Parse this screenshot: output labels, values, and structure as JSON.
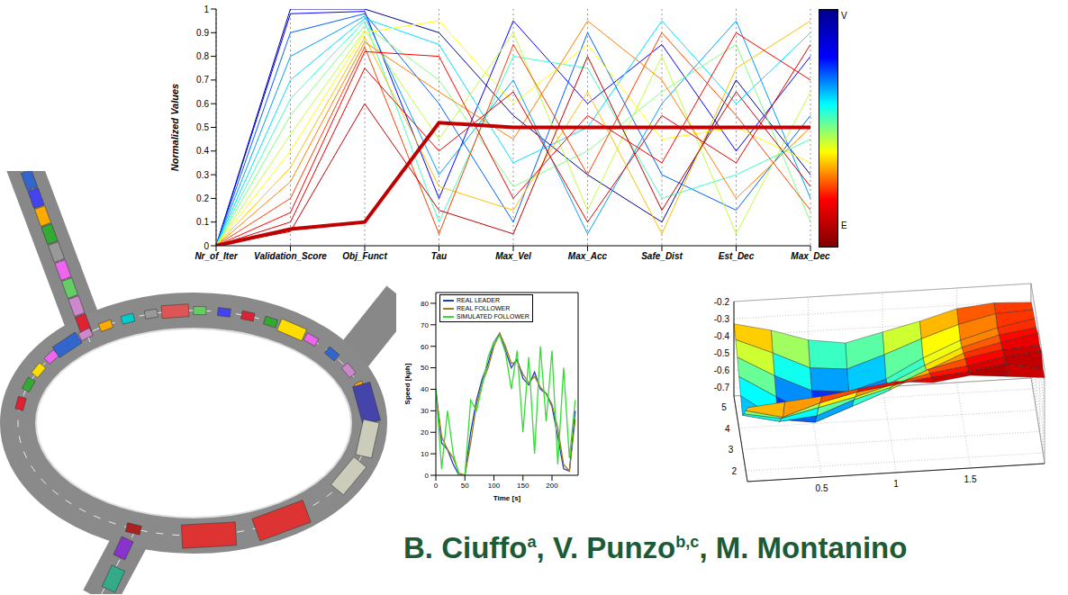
{
  "chart_data": [
    {
      "type": "parallel",
      "categories": [
        "Nr_of_Iter",
        "Validation_Score",
        "Obj_Funct",
        "Tau",
        "Max_Vel",
        "Max_Acc",
        "Safe_Dist",
        "Est_Dec",
        "Max_Dec"
      ],
      "ylabel": "Normalized Values",
      "ylim": [
        0,
        1
      ],
      "yticks": [
        0,
        0.1,
        0.2,
        0.3,
        0.4,
        0.5,
        0.6,
        0.7,
        0.8,
        0.9,
        1
      ],
      "grid": "x",
      "colorbar": {
        "labels": [
          "V",
          "E"
        ]
      },
      "series": [
        {
          "color": "#00008f",
          "values": [
            0,
            1,
            1,
            0.9,
            0.55,
            0.3,
            0.1,
            0.7,
            0.3
          ]
        },
        {
          "color": "#0000ff",
          "values": [
            0,
            0.98,
            0.99,
            0.2,
            0.95,
            0.6,
            0.85,
            0.4,
            0.8
          ]
        },
        {
          "color": "#0060ff",
          "values": [
            0,
            0.9,
            0.98,
            0.6,
            0.1,
            0.9,
            0.3,
            0.15,
            0.55
          ]
        },
        {
          "color": "#00a0ff",
          "values": [
            0,
            0.8,
            0.97,
            0.3,
            0.7,
            0.05,
            0.6,
            0.95,
            0.2
          ]
        },
        {
          "color": "#00e0ff",
          "values": [
            0,
            0.7,
            0.96,
            0.85,
            0.35,
            0.5,
            0.95,
            0.6,
            0.9
          ]
        },
        {
          "color": "#40ffc0",
          "values": [
            0,
            0.62,
            0.95,
            0.1,
            0.8,
            0.75,
            0.2,
            0.3,
            0.45
          ]
        },
        {
          "color": "#80ff80",
          "values": [
            0,
            0.55,
            0.93,
            0.7,
            0.25,
            0.4,
            0.65,
            0.85,
            0.1
          ]
        },
        {
          "color": "#c0ff40",
          "values": [
            0,
            0.47,
            0.91,
            0.45,
            0.9,
            0.15,
            0.8,
            0.05,
            0.65
          ]
        },
        {
          "color": "#ffff00",
          "values": [
            0,
            0.4,
            0.9,
            0.95,
            0.6,
            0.85,
            0.45,
            0.5,
            0.35
          ]
        },
        {
          "color": "#ffc000",
          "values": [
            0,
            0.33,
            0.88,
            0.25,
            0.15,
            0.65,
            0.05,
            0.75,
            0.95
          ]
        },
        {
          "color": "#ff8000",
          "values": [
            0,
            0.27,
            0.86,
            0.65,
            0.45,
            0.95,
            0.7,
            0.2,
            0.5
          ]
        },
        {
          "color": "#ff4000",
          "values": [
            0,
            0.2,
            0.84,
            0.05,
            0.85,
            0.3,
            0.9,
            0.55,
            0.15
          ]
        },
        {
          "color": "#ff0000",
          "values": [
            0,
            0.14,
            0.82,
            0.8,
            0.2,
            0.55,
            0.35,
            0.9,
            0.7
          ]
        },
        {
          "color": "#e00000",
          "values": [
            0,
            0.1,
            0.75,
            0.4,
            0.65,
            0.1,
            0.55,
            0.35,
            0.85
          ]
        },
        {
          "color": "#c00000",
          "values": [
            0,
            0.06,
            0.6,
            0.15,
            0.05,
            0.8,
            0.15,
            0.65,
            0.25
          ]
        },
        {
          "color": "#c00000",
          "line_style": "thick",
          "values": [
            0,
            0.07,
            0.1,
            0.52,
            0.5,
            0.5,
            0.5,
            0.5,
            0.5
          ]
        }
      ]
    },
    {
      "type": "line",
      "xlabel": "Time [s]",
      "ylabel": "Speed [kph]",
      "x": [
        0,
        10,
        20,
        30,
        40,
        50,
        60,
        70,
        80,
        90,
        100,
        110,
        120,
        130,
        140,
        150,
        160,
        170,
        180,
        190,
        200,
        210,
        220,
        230,
        240
      ],
      "xlim": [
        0,
        245
      ],
      "xticks": [
        0,
        50,
        100,
        150,
        200
      ],
      "ylim": [
        0,
        85
      ],
      "yticks": [
        0,
        10,
        20,
        30,
        40,
        50,
        60,
        70,
        80
      ],
      "grid": false,
      "legend": "upper left",
      "series": [
        {
          "name": "REAL LEADER",
          "color": "#1f3fbf",
          "values": [
            40,
            15,
            12,
            5,
            0,
            0,
            20,
            35,
            45,
            52,
            62,
            66,
            58,
            50,
            54,
            45,
            42,
            48,
            40,
            38,
            32,
            18,
            3,
            2,
            30
          ]
        },
        {
          "name": "REAL FOLLOWER",
          "color": "#9c7a1e",
          "values": [
            38,
            18,
            12,
            8,
            1,
            0,
            15,
            33,
            43,
            50,
            60,
            66,
            60,
            52,
            53,
            47,
            43,
            46,
            41,
            38,
            33,
            22,
            5,
            2,
            26
          ]
        },
        {
          "name": "SIMULATED FOLLOWER",
          "color": "#33dd33",
          "values": [
            40,
            3,
            30,
            10,
            0,
            0,
            35,
            30,
            42,
            55,
            62,
            65,
            57,
            40,
            58,
            20,
            55,
            10,
            60,
            25,
            58,
            5,
            50,
            8,
            35
          ]
        }
      ]
    },
    {
      "type": "surface",
      "x": [
        0,
        0.25,
        0.5,
        0.75,
        1,
        1.25,
        1.5,
        1.75,
        2
      ],
      "y": [
        1.5,
        2,
        2.5,
        3,
        3.5,
        4,
        4.5,
        5,
        5.5
      ],
      "xlim": [
        0,
        2
      ],
      "xticks": [
        0.5,
        1,
        1.5
      ],
      "ylim": [
        1.5,
        5.5
      ],
      "yticks": [
        2,
        3,
        4,
        5
      ],
      "zlim": [
        -0.75,
        -0.2
      ],
      "zticks": [
        -0.7,
        -0.6,
        -0.5,
        -0.4,
        -0.3,
        -0.2
      ],
      "z": [
        [
          -0.32,
          -0.3,
          -0.28,
          -0.25,
          -0.22,
          -0.24,
          -0.21,
          -0.23,
          -0.25
        ],
        [
          -0.4,
          -0.45,
          -0.38,
          -0.33,
          -0.3,
          -0.27,
          -0.25,
          -0.22,
          -0.26
        ],
        [
          -0.48,
          -0.52,
          -0.47,
          -0.42,
          -0.36,
          -0.31,
          -0.28,
          -0.24,
          -0.22
        ],
        [
          -0.55,
          -0.6,
          -0.58,
          -0.5,
          -0.44,
          -0.35,
          -0.3,
          -0.26,
          -0.25
        ],
        [
          -0.5,
          -0.65,
          -0.68,
          -0.6,
          -0.52,
          -0.42,
          -0.33,
          -0.28,
          -0.24
        ],
        [
          -0.45,
          -0.58,
          -0.7,
          -0.66,
          -0.55,
          -0.45,
          -0.36,
          -0.3,
          -0.27
        ],
        [
          -0.4,
          -0.52,
          -0.62,
          -0.64,
          -0.58,
          -0.47,
          -0.38,
          -0.32,
          -0.28
        ],
        [
          -0.36,
          -0.45,
          -0.55,
          -0.57,
          -0.5,
          -0.42,
          -0.35,
          -0.3,
          -0.29
        ],
        [
          -0.33,
          -0.38,
          -0.45,
          -0.48,
          -0.43,
          -0.38,
          -0.32,
          -0.3,
          -0.31
        ]
      ]
    }
  ],
  "authors": [
    {
      "text": "B. Ciuffo",
      "sup": "a"
    },
    {
      "text": ", V. Punzo",
      "sup": "b,c"
    },
    {
      "text": ", M. Montanino"
    }
  ]
}
